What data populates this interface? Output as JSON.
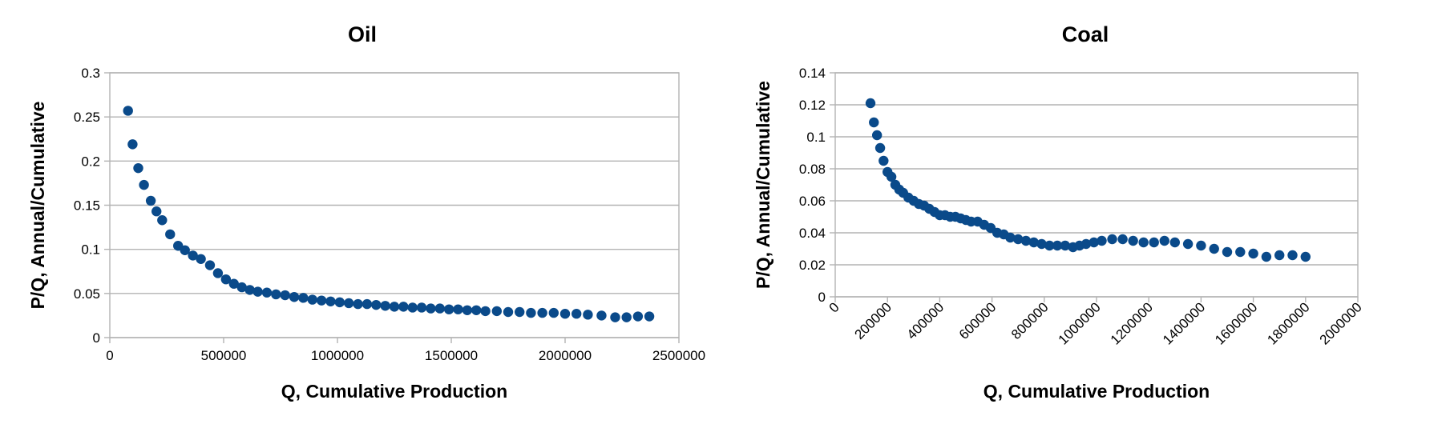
{
  "chart_data": [
    {
      "type": "scatter",
      "title": "Oil",
      "xlabel": "Q, Cumulative Production",
      "ylabel": "P/Q, Annual/Cumulative",
      "xlim": [
        0,
        2500000
      ],
      "ylim": [
        0,
        0.3
      ],
      "xticks": [
        "0",
        "500000",
        "1000000",
        "1500000",
        "2000000",
        "2500000"
      ],
      "yticks": [
        "0",
        "0.05",
        "0.1",
        "0.15",
        "0.2",
        "0.25",
        "0.3"
      ],
      "grid": true,
      "marker_color": "#0a4a8a",
      "series": [
        {
          "x": [
            80000,
            100000,
            125000,
            150000,
            180000,
            205000,
            230000,
            265000,
            300000,
            330000,
            365000,
            400000,
            440000,
            475000,
            510000,
            545000,
            580000,
            615000,
            650000,
            690000,
            730000,
            770000,
            810000,
            850000,
            890000,
            930000,
            970000,
            1010000,
            1050000,
            1090000,
            1130000,
            1170000,
            1210000,
            1250000,
            1290000,
            1330000,
            1370000,
            1410000,
            1450000,
            1490000,
            1530000,
            1570000,
            1610000,
            1650000,
            1700000,
            1750000,
            1800000,
            1850000,
            1900000,
            1950000,
            2000000,
            2050000,
            2100000,
            2160000,
            2220000,
            2270000,
            2320000,
            2370000
          ],
          "y": [
            0.257,
            0.219,
            0.192,
            0.173,
            0.155,
            0.143,
            0.133,
            0.117,
            0.104,
            0.099,
            0.093,
            0.089,
            0.082,
            0.073,
            0.066,
            0.061,
            0.057,
            0.054,
            0.052,
            0.051,
            0.049,
            0.048,
            0.046,
            0.045,
            0.043,
            0.042,
            0.041,
            0.04,
            0.039,
            0.038,
            0.038,
            0.037,
            0.036,
            0.035,
            0.035,
            0.034,
            0.034,
            0.033,
            0.033,
            0.032,
            0.032,
            0.031,
            0.031,
            0.03,
            0.03,
            0.029,
            0.029,
            0.028,
            0.028,
            0.028,
            0.027,
            0.027,
            0.026,
            0.025,
            0.023,
            0.023,
            0.024,
            0.024
          ]
        }
      ]
    },
    {
      "type": "scatter",
      "title": "Coal",
      "xlabel": "Q, Cumulative Production",
      "ylabel": "P/Q, Annual/Cumulative",
      "xlim": [
        0,
        2000000
      ],
      "ylim": [
        0,
        0.14
      ],
      "xticks": [
        "0",
        "200000",
        "400000",
        "600000",
        "800000",
        "1000000",
        "1200000",
        "1400000",
        "1600000",
        "1800000",
        "2000000"
      ],
      "yticks": [
        "0",
        "0.02",
        "0.04",
        "0.06",
        "0.08",
        "0.1",
        "0.12",
        "0.14"
      ],
      "grid": true,
      "marker_color": "#0a4a8a",
      "series": [
        {
          "x": [
            135000,
            148000,
            160000,
            172000,
            185000,
            200000,
            215000,
            230000,
            245000,
            260000,
            280000,
            300000,
            320000,
            340000,
            360000,
            380000,
            400000,
            420000,
            440000,
            460000,
            480000,
            500000,
            520000,
            545000,
            570000,
            595000,
            620000,
            645000,
            670000,
            700000,
            730000,
            760000,
            790000,
            820000,
            850000,
            880000,
            910000,
            935000,
            960000,
            990000,
            1020000,
            1060000,
            1100000,
            1140000,
            1180000,
            1220000,
            1260000,
            1300000,
            1350000,
            1400000,
            1450000,
            1500000,
            1550000,
            1600000,
            1650000,
            1700000,
            1750000,
            1800000
          ],
          "y": [
            0.121,
            0.109,
            0.101,
            0.093,
            0.085,
            0.078,
            0.075,
            0.07,
            0.067,
            0.065,
            0.062,
            0.06,
            0.058,
            0.057,
            0.055,
            0.053,
            0.051,
            0.051,
            0.05,
            0.05,
            0.049,
            0.048,
            0.047,
            0.047,
            0.045,
            0.043,
            0.04,
            0.039,
            0.037,
            0.036,
            0.035,
            0.034,
            0.033,
            0.032,
            0.032,
            0.032,
            0.031,
            0.032,
            0.033,
            0.034,
            0.035,
            0.036,
            0.036,
            0.035,
            0.034,
            0.034,
            0.035,
            0.034,
            0.033,
            0.032,
            0.03,
            0.028,
            0.028,
            0.027,
            0.025,
            0.026,
            0.026,
            0.025
          ]
        }
      ]
    }
  ]
}
